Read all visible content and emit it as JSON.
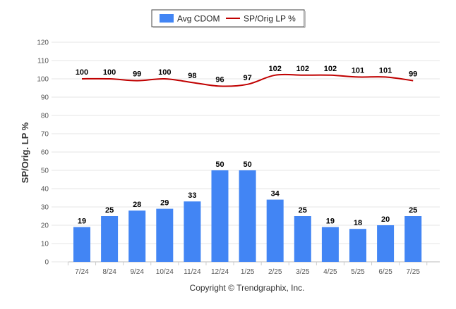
{
  "chart_data": {
    "type": "bar",
    "categories": [
      "7/24",
      "8/24",
      "9/24",
      "10/24",
      "11/24",
      "12/24",
      "1/25",
      "2/25",
      "3/25",
      "4/25",
      "5/25",
      "6/25",
      "7/25"
    ],
    "series": [
      {
        "name": "Avg CDOM",
        "type": "bar",
        "color": "#4285f4",
        "values": [
          19,
          25,
          28,
          29,
          33,
          50,
          50,
          34,
          25,
          19,
          18,
          20,
          25
        ]
      },
      {
        "name": "SP/Orig LP %",
        "type": "line",
        "color": "#c00000",
        "values": [
          100,
          100,
          99,
          100,
          98,
          96,
          97,
          102,
          102,
          102,
          101,
          101,
          99
        ]
      }
    ],
    "ylabel": "SP/Orig. LP %",
    "ylim": [
      0,
      120
    ],
    "yticks": [
      0,
      10,
      20,
      30,
      40,
      50,
      60,
      70,
      80,
      90,
      100,
      110,
      120
    ],
    "grid": true,
    "legend_position": "top-center",
    "data_labels": true
  },
  "credit": "Copyright © Trendgraphix, Inc."
}
